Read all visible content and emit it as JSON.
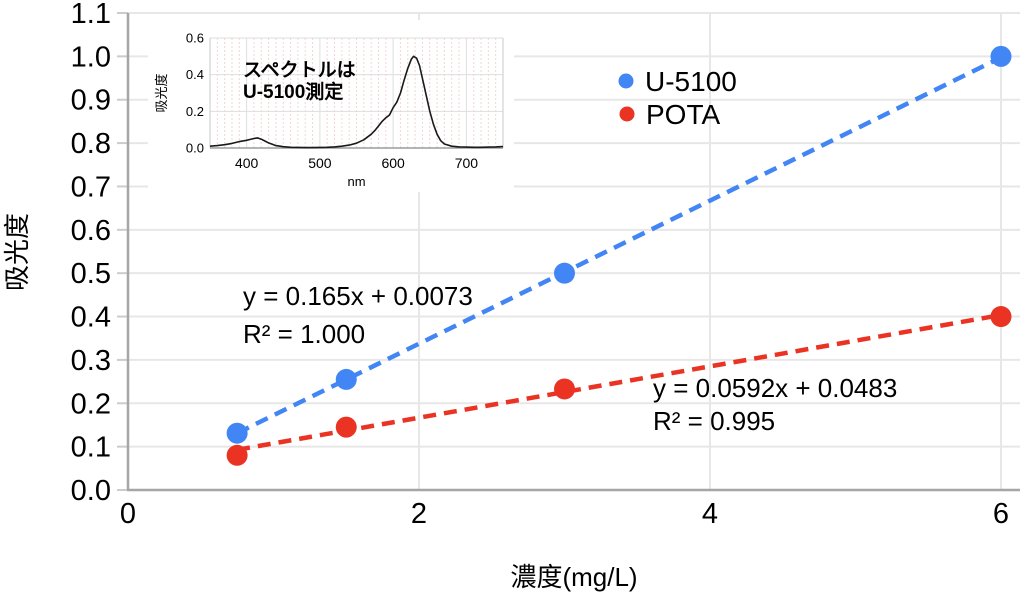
{
  "page": {
    "background": "#ffffff"
  },
  "colors": {
    "series_blue": "#4285F4",
    "series_red": "#EA3323",
    "gridline": "#e7e7e7",
    "axis": "#a6a6a6",
    "tick": "#cccccc",
    "inset_grid": "#dedede",
    "inset_minor_grid": "#f3d4d4",
    "inset_axis": "#9b9b9b",
    "inset_border": "#c9c9c9",
    "spectrum_line": "#1a1a1a"
  },
  "chart_data": [
    {
      "id": "main",
      "type": "scatter",
      "title": "",
      "xlabel": "濃度(mg/L)",
      "ylabel": "吸光度",
      "xlim": [
        0,
        6.13
      ],
      "ylim": [
        0,
        1.1
      ],
      "xticks": [
        0,
        2,
        4,
        6
      ],
      "ytick_min": 0,
      "ytick_max": 1.1,
      "ytick_step": 0.1,
      "grid": true,
      "legend_position": "top-right",
      "series": [
        {
          "name": "U-5100",
          "color": "#4285F4",
          "x": [
            0.75,
            1.5,
            3,
            6
          ],
          "y": [
            0.131,
            0.255,
            0.5,
            1.0
          ],
          "trendline": {
            "slope": 0.165,
            "intercept": 0.0073,
            "x_start": 0.75,
            "x_end": 6,
            "label_line1": "y = 0.165x + 0.0073",
            "label_line2": "R² = 1.000"
          }
        },
        {
          "name": "POTA",
          "color": "#EA3323",
          "x": [
            0.75,
            1.5,
            3,
            6
          ],
          "y": [
            0.08,
            0.145,
            0.233,
            0.4
          ],
          "trendline": {
            "slope": 0.0592,
            "intercept": 0.0483,
            "x_start": 0.75,
            "x_end": 6,
            "label_line1": "y = 0.0592x + 0.0483",
            "label_line2": "R² = 0.995"
          }
        }
      ]
    },
    {
      "id": "inset",
      "type": "line",
      "annotation_lines": [
        "スペクトルは",
        "U-5100測定"
      ],
      "xlabel": "nm",
      "ylabel": "吸光度",
      "xlim": [
        350,
        750
      ],
      "ylim": [
        0,
        0.6
      ],
      "xticks": [
        400,
        500,
        600,
        700
      ],
      "yticks": [
        0,
        0.2,
        0.4,
        0.6
      ],
      "grid": true,
      "series": [
        {
          "name": "U-5100 spectrum",
          "color": "#1a1a1a",
          "x": [
            350,
            360,
            370,
            380,
            390,
            400,
            405,
            410,
            415,
            420,
            425,
            430,
            435,
            440,
            450,
            460,
            470,
            480,
            490,
            500,
            510,
            520,
            530,
            540,
            550,
            560,
            570,
            575,
            580,
            585,
            590,
            595,
            600,
            605,
            610,
            615,
            620,
            625,
            628,
            632,
            636,
            640,
            645,
            650,
            655,
            660,
            665,
            670,
            680,
            690,
            700,
            710,
            720,
            730,
            740,
            750
          ],
          "y": [
            0.01,
            0.013,
            0.018,
            0.025,
            0.035,
            0.042,
            0.047,
            0.052,
            0.055,
            0.048,
            0.038,
            0.028,
            0.02,
            0.013,
            0.007,
            0.004,
            0.003,
            0.002,
            0.002,
            0.003,
            0.004,
            0.006,
            0.01,
            0.016,
            0.026,
            0.045,
            0.075,
            0.095,
            0.12,
            0.145,
            0.165,
            0.18,
            0.22,
            0.25,
            0.3,
            0.37,
            0.435,
            0.485,
            0.5,
            0.49,
            0.45,
            0.38,
            0.29,
            0.2,
            0.13,
            0.075,
            0.04,
            0.022,
            0.01,
            0.006,
            0.005,
            0.004,
            0.004,
            0.005,
            0.006,
            0.008
          ]
        }
      ]
    }
  ]
}
